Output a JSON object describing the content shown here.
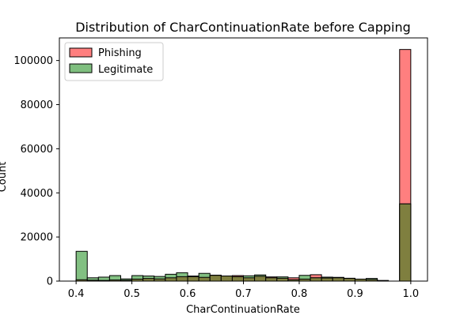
{
  "chart_data": {
    "type": "bar",
    "title": "Distribution of CharContinuationRate before Capping",
    "xlabel": "CharContinuationRate",
    "ylabel": "Count",
    "xlim": [
      0.37,
      1.03
    ],
    "ylim": [
      0,
      110250
    ],
    "xticks": [
      0.4,
      0.5,
      0.6,
      0.7,
      0.8,
      0.9,
      1.0
    ],
    "xtick_labels": [
      "0.4",
      "0.5",
      "0.6",
      "0.7",
      "0.8",
      "0.9",
      "1.0"
    ],
    "yticks": [
      0,
      20000,
      40000,
      60000,
      80000,
      100000
    ],
    "ytick_labels": [
      "0",
      "20000",
      "40000",
      "60000",
      "80000",
      "100000"
    ],
    "bin_edges": [
      0.4,
      0.42,
      0.44,
      0.46,
      0.48,
      0.5,
      0.52,
      0.54,
      0.56,
      0.58,
      0.6,
      0.62,
      0.64,
      0.66,
      0.68,
      0.7,
      0.72,
      0.74,
      0.76,
      0.78,
      0.8,
      0.82,
      0.84,
      0.86,
      0.88,
      0.9,
      0.92,
      0.94,
      0.96,
      0.98,
      1.0
    ],
    "series": [
      {
        "name": "Phishing",
        "color": "#ff7f7f",
        "values": [
          600,
          400,
          300,
          500,
          400,
          900,
          1200,
          1000,
          1500,
          2000,
          2300,
          1700,
          2600,
          2300,
          2500,
          1500,
          2200,
          1900,
          1300,
          1500,
          900,
          2900,
          1400,
          1700,
          1300,
          900,
          700,
          300,
          0,
          105000
        ]
      },
      {
        "name": "Legitimate",
        "color": "#7fbf7f",
        "values": [
          13500,
          1500,
          1800,
          2500,
          1000,
          2500,
          2300,
          2100,
          3100,
          3800,
          2000,
          3500,
          2700,
          2300,
          2000,
          2400,
          2800,
          1500,
          1900,
          600,
          2600,
          1500,
          1800,
          1500,
          1200,
          900,
          1200,
          0,
          0,
          35000
        ]
      }
    ],
    "legend": "top-left"
  }
}
